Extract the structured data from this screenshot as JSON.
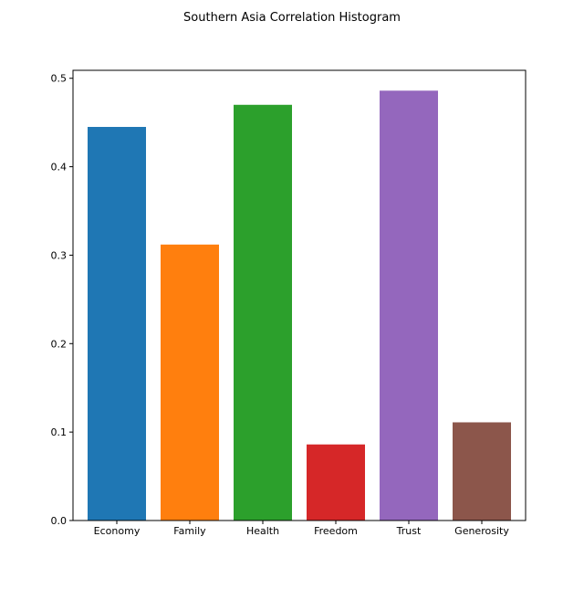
{
  "chart_data": {
    "type": "bar",
    "title": "Southern Asia Correlation Histogram",
    "xlabel": "",
    "ylabel": "",
    "categories": [
      "Economy",
      "Family",
      "Health",
      "Freedom",
      "Trust",
      "Generosity"
    ],
    "values": [
      0.445,
      0.312,
      0.47,
      0.086,
      0.486,
      0.111
    ],
    "colors": [
      "#1f77b4",
      "#ff7f0e",
      "#2ca02c",
      "#d62728",
      "#9467bd",
      "#8c564b"
    ],
    "ylim": [
      0,
      0.509
    ],
    "yticks": [
      0.0,
      0.1,
      0.2,
      0.3,
      0.4,
      0.5
    ],
    "ytick_labels": [
      "0.0",
      "0.1",
      "0.2",
      "0.3",
      "0.4",
      "0.5"
    ],
    "grid": false,
    "legend": "none"
  }
}
